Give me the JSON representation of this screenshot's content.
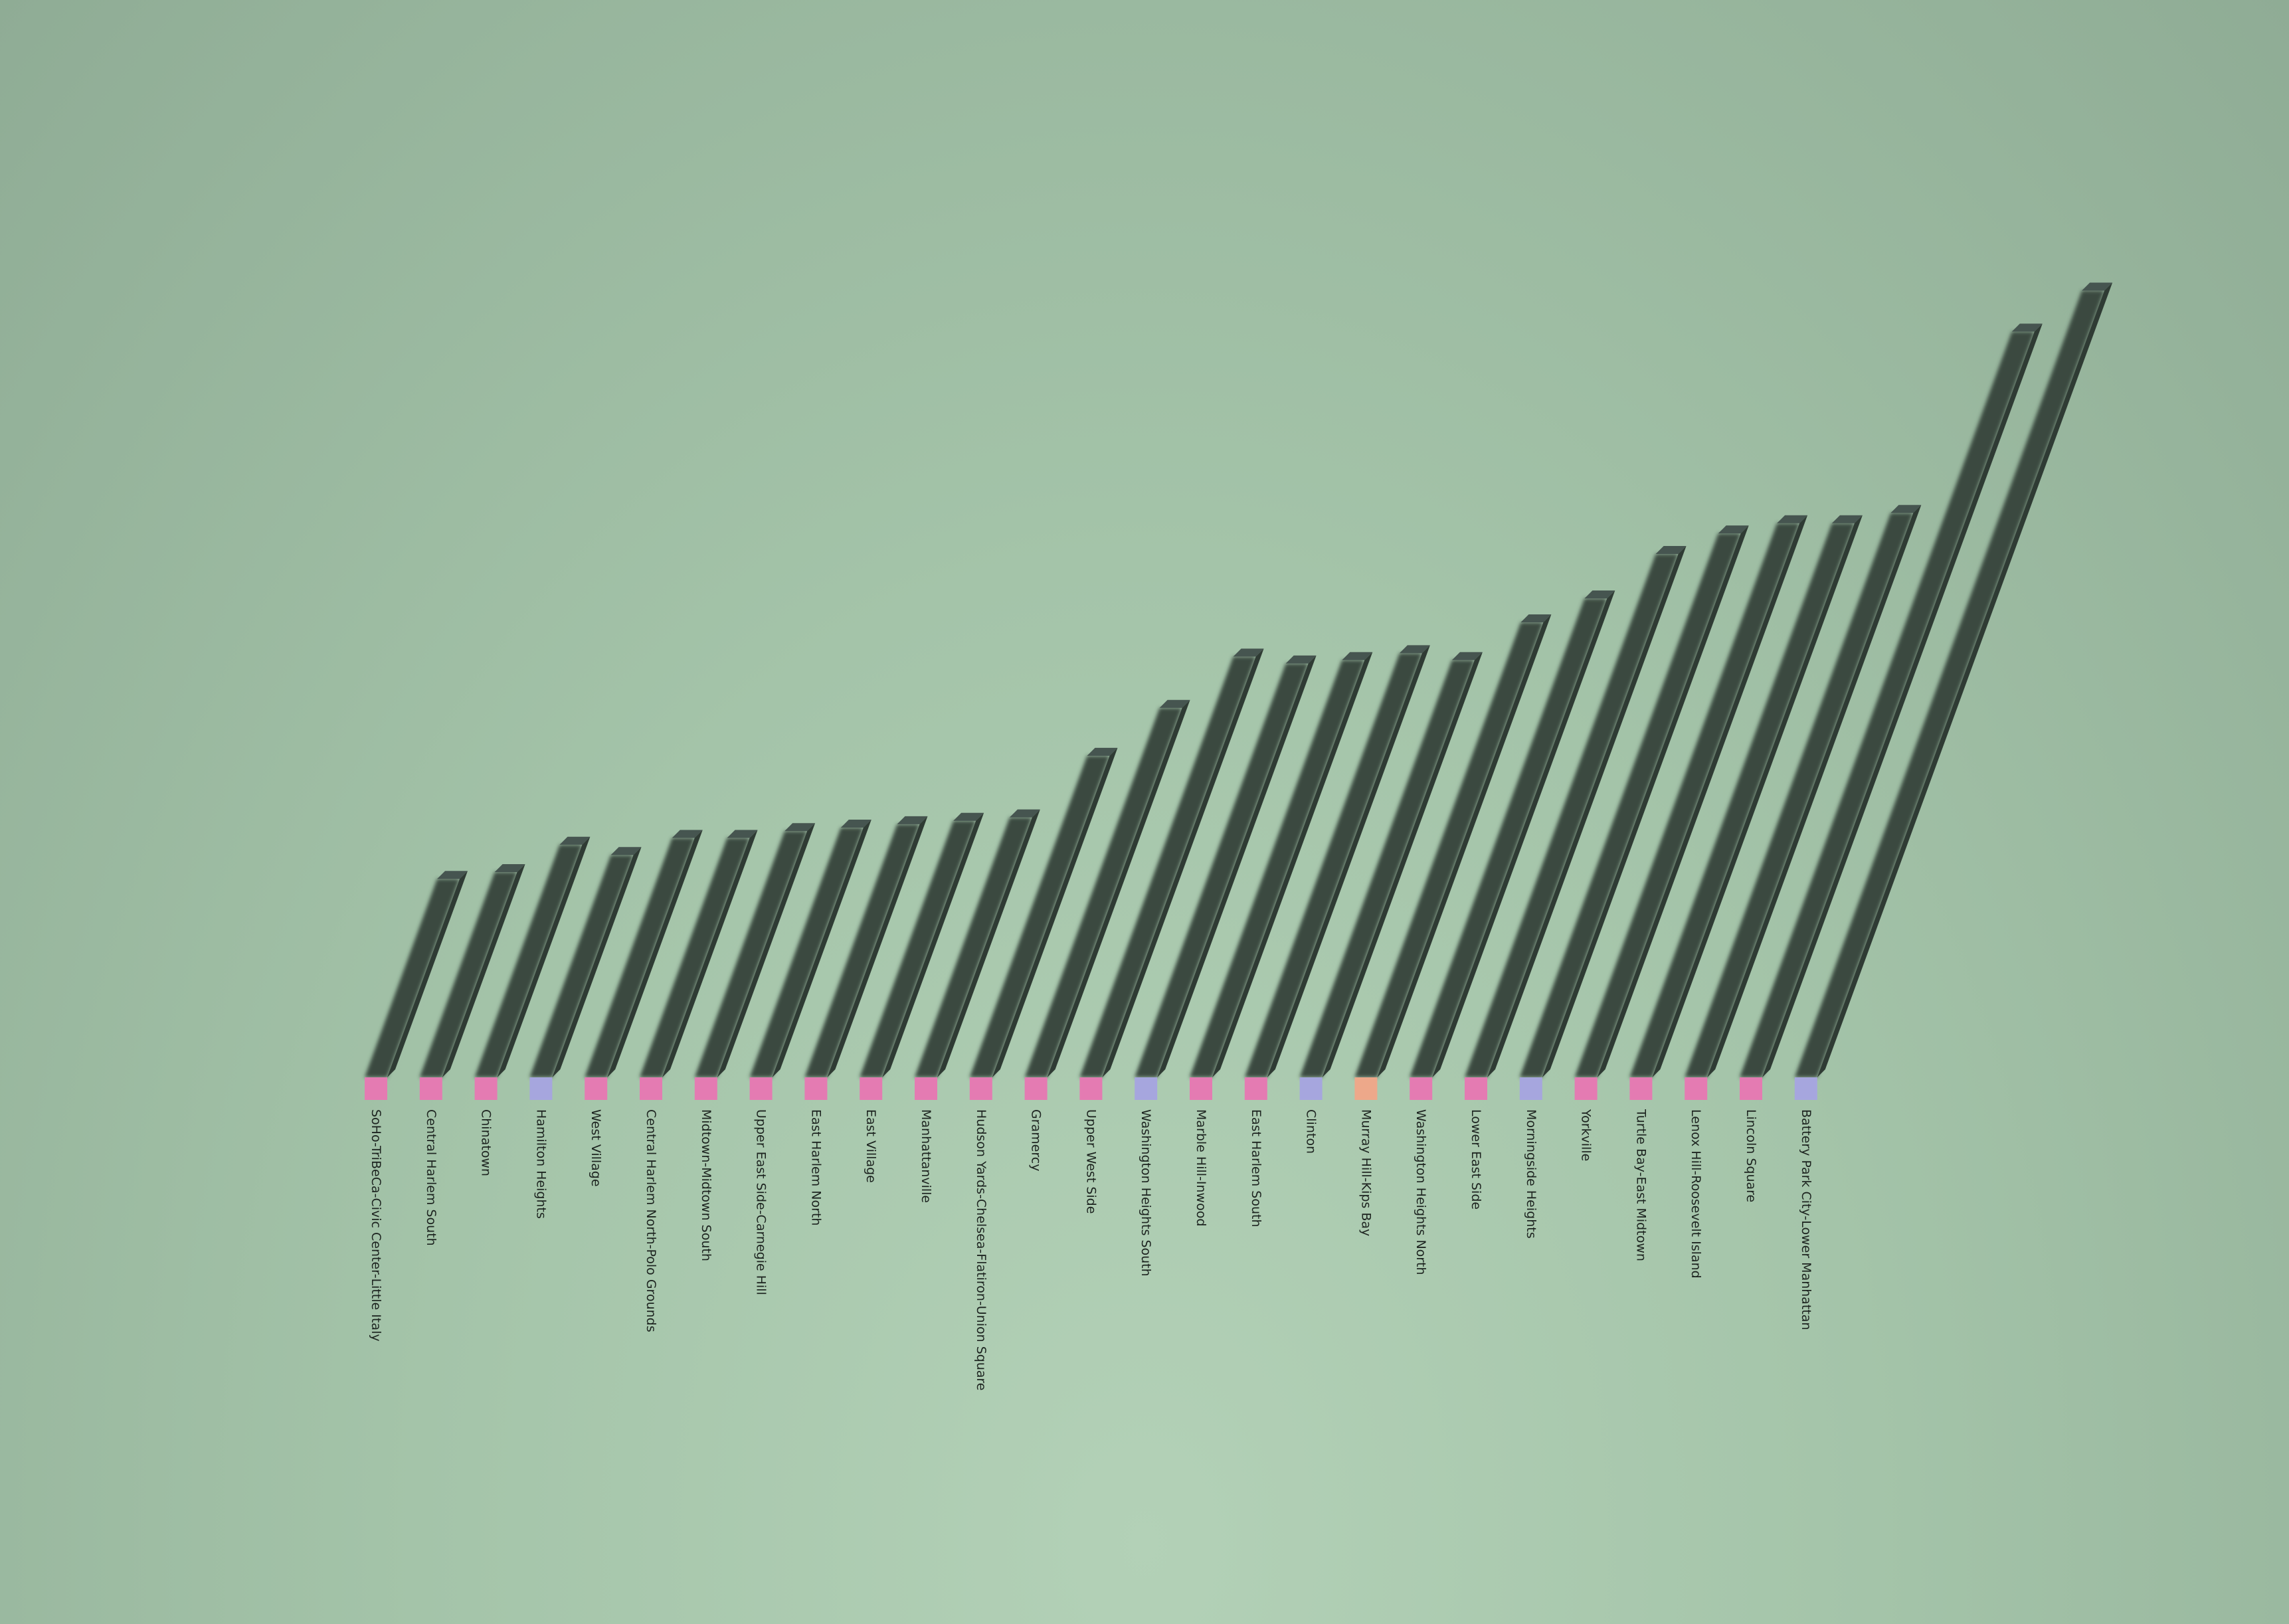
{
  "chart_data": {
    "type": "bar",
    "title": "",
    "xlabel": "",
    "ylabel": "",
    "ylim": [
      0,
      30
    ],
    "grid": false,
    "legend": "none",
    "categories": [
      "SoHo-TriBeCa-Civic Center-Little Italy",
      "Central Harlem South",
      "Chinatown",
      "Hamilton Heights",
      "West Village",
      "Central Harlem North-Polo Grounds",
      "Midtown-Midtown South",
      "Upper East Side-Carnegie Hill",
      "East Harlem North",
      "East Village",
      "Manhattanville",
      "Hudson Yards-Chelsea-Flatiron-Union Square",
      "Gramercy",
      "Upper West Side",
      "Washington Heights South",
      "Marble Hill-Inwood",
      "East Harlem South",
      "Clinton",
      "Murray Hill-Kips Bay",
      "Washington Heights North",
      "Lower East Side",
      "Morningside Heights",
      "Yorkville",
      "Turtle Bay-East Midtown",
      "Lenox Hill-Roosevelt Island",
      "Lincoln Square",
      "Battery Park City-Lower Manhattan"
    ],
    "values": [
      5.8,
      6.0,
      6.8,
      6.5,
      7.0,
      7.0,
      7.2,
      7.3,
      7.4,
      7.5,
      7.6,
      9.4,
      10.8,
      12.3,
      12.1,
      12.2,
      12.4,
      12.2,
      13.3,
      14.0,
      15.3,
      15.9,
      16.2,
      16.2,
      16.5,
      21.8,
      23.0
    ],
    "marker_colors": [
      "#e47bb2",
      "#e47bb2",
      "#e47bb2",
      "#a6a6de",
      "#e47bb2",
      "#e47bb2",
      "#e47bb2",
      "#e47bb2",
      "#e47bb2",
      "#e47bb2",
      "#e47bb2",
      "#e47bb2",
      "#e47bb2",
      "#e47bb2",
      "#a6a6de",
      "#e47bb2",
      "#e47bb2",
      "#a6a6de",
      "#eda88a",
      "#e47bb2",
      "#e47bb2",
      "#a6a6de",
      "#e47bb2",
      "#e47bb2",
      "#e47bb2",
      "#e47bb2",
      "#a6a6de"
    ],
    "bar_color": "#3b4940",
    "background_color": "#a4c4a9"
  }
}
